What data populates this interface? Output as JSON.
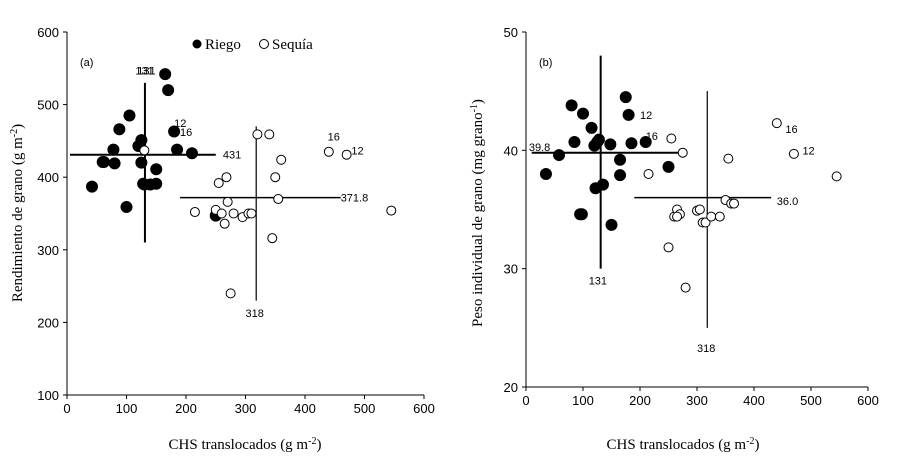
{
  "chart_data": [
    {
      "type": "scatter",
      "panel_label": "(a)",
      "xlabel": "CHS translocados (g m",
      "xlabel_sup": "-2",
      "xlabel_end": ")",
      "ylabel": "Rendimiento de grano (g m",
      "ylabel_sup": "-2",
      "ylabel_end": ")",
      "xlim": [
        0,
        600
      ],
      "ylim": [
        100,
        600
      ],
      "xticks": [
        "0",
        "100",
        "200",
        "300",
        "400",
        "500",
        "600"
      ],
      "yticks": [
        "100",
        "200",
        "300",
        "400",
        "500",
        "600"
      ],
      "legend": [
        {
          "name": "Riego",
          "marker": "filled"
        },
        {
          "name": "Sequía",
          "marker": "open"
        }
      ],
      "series": [
        {
          "name": "Riego",
          "marker": "filled",
          "x": [
            42,
            62,
            80,
            88,
            100,
            105,
            120,
            125,
            125,
            128,
            130,
            140,
            150,
            150,
            165,
            170,
            180,
            185,
            210,
            250,
            60,
            78
          ],
          "y": [
            387,
            421,
            419,
            466,
            359,
            485,
            443,
            420,
            451,
            391,
            390,
            390,
            391,
            411,
            542,
            520,
            463,
            438,
            433,
            347,
            421,
            438
          ]
        },
        {
          "name": "Sequía",
          "marker": "open",
          "x": [
            130,
            215,
            250,
            255,
            260,
            265,
            268,
            270,
            275,
            280,
            295,
            305,
            310,
            340,
            345,
            350,
            355,
            360,
            440,
            470,
            545,
            320
          ],
          "y": [
            437,
            352,
            355,
            392,
            350,
            336,
            400,
            366,
            240,
            350,
            345,
            350,
            350,
            459,
            316,
            400,
            370,
            424,
            435,
            431,
            354,
            459
          ]
        }
      ],
      "point_labels": [
        {
          "text": "131",
          "x": 115,
          "y": 547
        },
        {
          "text": "12",
          "x": 180,
          "y": 475
        },
        {
          "text": "16",
          "x": 190,
          "y": 462
        },
        {
          "text": "16",
          "x": 438,
          "y": 456
        },
        {
          "text": "12",
          "x": 478,
          "y": 437
        }
      ],
      "mean_lines": [
        {
          "series": "Riego",
          "x_mean": 131,
          "y_mean": 431,
          "x_range": [
            5,
            250
          ],
          "y_range": [
            310,
            530
          ],
          "labels": [
            {
              "text": "431",
              "x": 262,
              "y": 431
            },
            {
              "text": "131",
              "x": 118,
              "y": 547
            }
          ]
        },
        {
          "series": "Sequía",
          "x_mean": 318,
          "y_mean": 371.8,
          "x_range": [
            190,
            460
          ],
          "y_range": [
            230,
            470
          ],
          "labels": [
            {
              "text": "371.8",
              "x": 460,
              "y": 372
            },
            {
              "text": "318",
              "x": 300,
              "y": 213
            }
          ]
        }
      ]
    },
    {
      "type": "scatter",
      "panel_label": "(b)",
      "xlabel": "CHS translocados (g m",
      "xlabel_sup": "-2",
      "xlabel_end": ")",
      "ylabel": "Peso individual  de grano (mg grano",
      "ylabel_sup": "-1",
      "ylabel_end": ")",
      "xlim": [
        0,
        600
      ],
      "ylim": [
        20,
        50
      ],
      "xticks": [
        "0",
        "100",
        "200",
        "300",
        "400",
        "500",
        "600"
      ],
      "yticks": [
        "20",
        "30",
        "40",
        "50"
      ],
      "series": [
        {
          "name": "Riego",
          "marker": "filled",
          "x": [
            35,
            58,
            80,
            85,
            95,
            100,
            115,
            120,
            122,
            125,
            128,
            135,
            148,
            150,
            165,
            165,
            175,
            180,
            185,
            210,
            250,
            98
          ],
          "y": [
            38.0,
            39.6,
            43.8,
            40.7,
            34.6,
            43.1,
            41.9,
            40.4,
            36.8,
            40.7,
            40.9,
            37.1,
            40.5,
            33.7,
            39.2,
            37.9,
            44.5,
            43.0,
            40.6,
            40.7,
            38.6,
            34.6
          ]
        },
        {
          "name": "Sequía",
          "marker": "open",
          "x": [
            215,
            250,
            255,
            260,
            265,
            270,
            275,
            280,
            300,
            305,
            310,
            315,
            325,
            350,
            355,
            360,
            365,
            440,
            470,
            545,
            265,
            340
          ],
          "y": [
            38.0,
            31.8,
            41.0,
            34.4,
            35.0,
            34.6,
            39.8,
            28.4,
            34.9,
            35.0,
            33.9,
            33.9,
            34.4,
            35.8,
            39.3,
            35.5,
            35.5,
            42.3,
            39.7,
            37.8,
            34.4,
            34.4
          ]
        }
      ],
      "point_labels": [
        {
          "text": "12",
          "x": 200,
          "y": 43.0
        },
        {
          "text": "16",
          "x": 210,
          "y": 41.2
        },
        {
          "text": "16",
          "x": 455,
          "y": 41.8
        },
        {
          "text": "12",
          "x": 485,
          "y": 40.0
        }
      ],
      "mean_lines": [
        {
          "series": "Riego",
          "x_mean": 131,
          "y_mean": 39.8,
          "x_range": [
            10,
            270
          ],
          "y_range": [
            30,
            48
          ],
          "labels": [
            {
              "text": "39.8",
              "x": 5,
              "y": 40.3
            },
            {
              "text": "131",
              "x": 110,
              "y": 29.0
            }
          ]
        },
        {
          "series": "Sequía",
          "x_mean": 318,
          "y_mean": 36.0,
          "x_range": [
            190,
            430
          ],
          "y_range": [
            25,
            45
          ],
          "labels": [
            {
              "text": "36.0",
              "x": 440,
              "y": 35.7
            },
            {
              "text": "318",
              "x": 300,
              "y": 23.3
            }
          ]
        }
      ]
    }
  ]
}
